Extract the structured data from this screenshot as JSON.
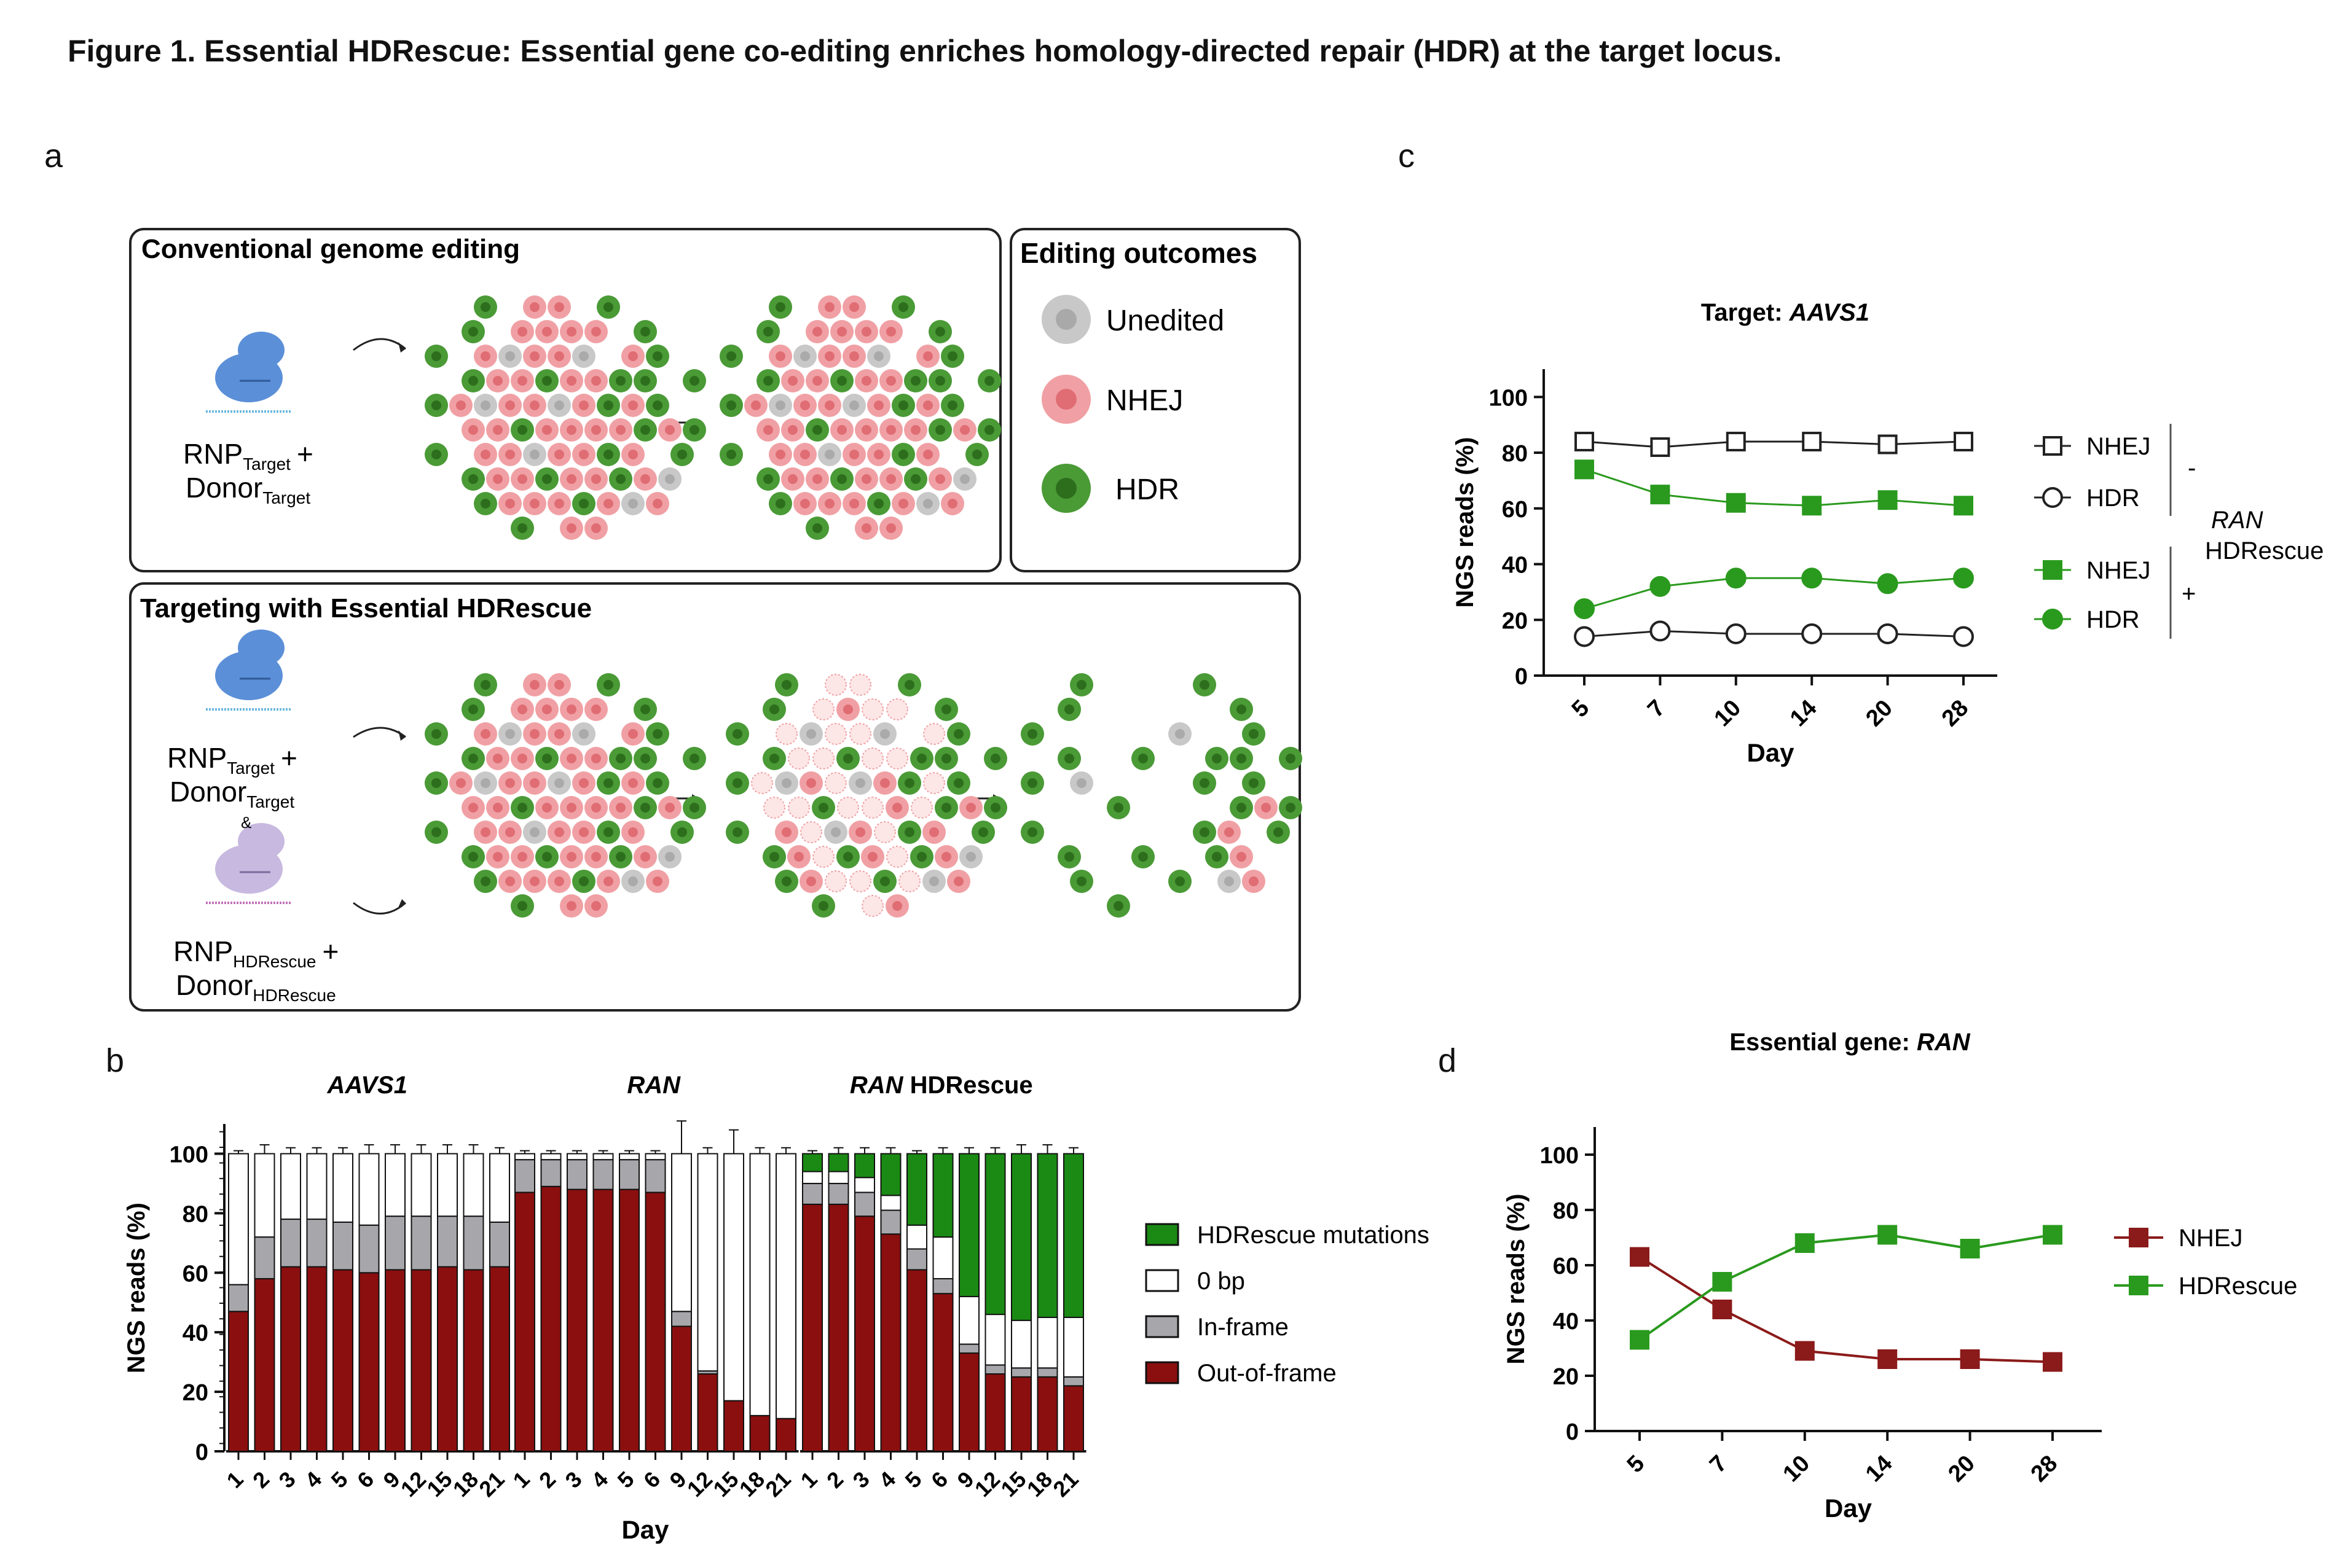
{
  "figure_title": "Figure 1. Essential HDRescue: Essential gene co-editing enriches homology-directed repair (HDR) at the target locus.",
  "panels": {
    "a": {
      "label": "a",
      "conventional_title": "Conventional genome editing",
      "outcomes_title": "Editing outcomes",
      "outcomes": [
        "Unedited",
        "NHEJ",
        "HDR"
      ],
      "hdrescue_title": "Targeting with Essential HDRescue",
      "rnp_prefix": "RNP",
      "donor_prefix": "Donor",
      "target_sub": "Target",
      "hdrescue_sub": "HDRescue",
      "plus": "+",
      "amp": "&"
    },
    "b": {
      "label": "b"
    },
    "c": {
      "label": "c"
    },
    "d": {
      "label": "d"
    }
  },
  "colors": {
    "unedited": "#c8c8c8",
    "nhej": "#f0a0a4",
    "hdr": "#3f9a2e",
    "out_of_frame": "#8b0f0f",
    "in_frame": "#a6a6ab",
    "zero_bp": "#ffffff",
    "hdrescue_mut": "#1a8a14",
    "ran_line": "#8b1a1a",
    "green_line": "#2a9a1e",
    "cas_target": "#5b8fd8",
    "cas_hdrescue": "#c7b9e0"
  },
  "chart_data": [
    {
      "id": "b",
      "type": "bar",
      "stacked": true,
      "groups": [
        "AAVS1",
        "RAN",
        "RAN HDRescue"
      ],
      "categories": [
        "1",
        "2",
        "3",
        "4",
        "5",
        "6",
        "9",
        "12",
        "15",
        "18",
        "21"
      ],
      "ylabel": "NGS reads (%)",
      "xlabel": "Day",
      "ylim": [
        0,
        110
      ],
      "yticks": [
        0,
        20,
        40,
        60,
        80,
        100
      ],
      "legend": [
        "HDRescue mutations",
        "0 bp",
        "In-frame",
        "Out-of-frame"
      ],
      "series": {
        "AAVS1": {
          "Out-of-frame": [
            47,
            58,
            62,
            62,
            61,
            60,
            61,
            61,
            62,
            61,
            62
          ],
          "In-frame": [
            9,
            14,
            16,
            16,
            16,
            16,
            18,
            18,
            17,
            18,
            15
          ],
          "0 bp": [
            44,
            28,
            22,
            22,
            23,
            24,
            21,
            21,
            21,
            21,
            23
          ],
          "HDRescue mutations": [
            0,
            0,
            0,
            0,
            0,
            0,
            0,
            0,
            0,
            0,
            0
          ]
        },
        "RAN": {
          "Out-of-frame": [
            87,
            89,
            88,
            88,
            88,
            87,
            42,
            26,
            17,
            12,
            11
          ],
          "In-frame": [
            11,
            9,
            10,
            10,
            10,
            11,
            5,
            1,
            0,
            0,
            0
          ],
          "0 bp": [
            2,
            2,
            2,
            2,
            2,
            2,
            53,
            73,
            83,
            88,
            89
          ],
          "HDRescue mutations": [
            0,
            0,
            0,
            0,
            0,
            0,
            0,
            0,
            0,
            0,
            0
          ]
        },
        "RAN HDRescue": {
          "Out-of-frame": [
            83,
            83,
            79,
            73,
            61,
            53,
            33,
            26,
            25,
            25,
            22
          ],
          "In-frame": [
            7,
            7,
            8,
            8,
            7,
            5,
            3,
            3,
            3,
            3,
            3
          ],
          "0 bp": [
            4,
            4,
            5,
            5,
            8,
            14,
            16,
            17,
            16,
            17,
            20
          ],
          "HDRescue mutations": [
            6,
            6,
            8,
            14,
            24,
            28,
            48,
            54,
            56,
            55,
            55
          ]
        }
      },
      "error": {
        "AAVS1": [
          1,
          3,
          2,
          2,
          2,
          3,
          3,
          3,
          3,
          3,
          2
        ],
        "RAN": [
          1,
          1,
          1,
          1,
          1,
          1,
          11,
          2,
          8,
          2,
          2
        ],
        "RAN HDRescue": [
          1,
          2,
          2,
          2,
          1,
          2,
          2,
          2,
          3,
          3,
          2
        ]
      }
    },
    {
      "id": "c",
      "type": "line",
      "title": "Target: AAVS1",
      "ylabel": "NGS reads (%)",
      "xlabel": "Day",
      "x": [
        "5",
        "7",
        "10",
        "14",
        "20",
        "28"
      ],
      "ylim": [
        0,
        110
      ],
      "yticks": [
        0,
        20,
        40,
        60,
        80,
        100
      ],
      "legend_group_label": "RAN HDRescue",
      "legend_group_signs": [
        "-",
        "+"
      ],
      "series": [
        {
          "name": "NHEJ",
          "group": "-",
          "values": [
            84,
            82,
            84,
            84,
            83,
            84
          ],
          "marker": "open-square"
        },
        {
          "name": "HDR",
          "group": "-",
          "values": [
            14,
            16,
            15,
            15,
            15,
            14
          ],
          "marker": "open-circle"
        },
        {
          "name": "NHEJ",
          "group": "+",
          "values": [
            74,
            65,
            62,
            61,
            63,
            61
          ],
          "marker": "filled-square"
        },
        {
          "name": "HDR",
          "group": "+",
          "values": [
            24,
            32,
            35,
            35,
            33,
            35
          ],
          "marker": "filled-circle"
        }
      ]
    },
    {
      "id": "d",
      "type": "line",
      "title": "Essential gene: RAN",
      "ylabel": "NGS reads (%)",
      "xlabel": "Day",
      "x": [
        "5",
        "7",
        "10",
        "14",
        "20",
        "28"
      ],
      "ylim": [
        0,
        110
      ],
      "yticks": [
        0,
        20,
        40,
        60,
        80,
        100
      ],
      "series": [
        {
          "name": "NHEJ",
          "values": [
            63,
            44,
            29,
            26,
            26,
            25
          ],
          "marker": "filled-square"
        },
        {
          "name": "HDRescue",
          "values": [
            33,
            54,
            68,
            71,
            66,
            71
          ],
          "marker": "filled-square"
        }
      ]
    }
  ]
}
